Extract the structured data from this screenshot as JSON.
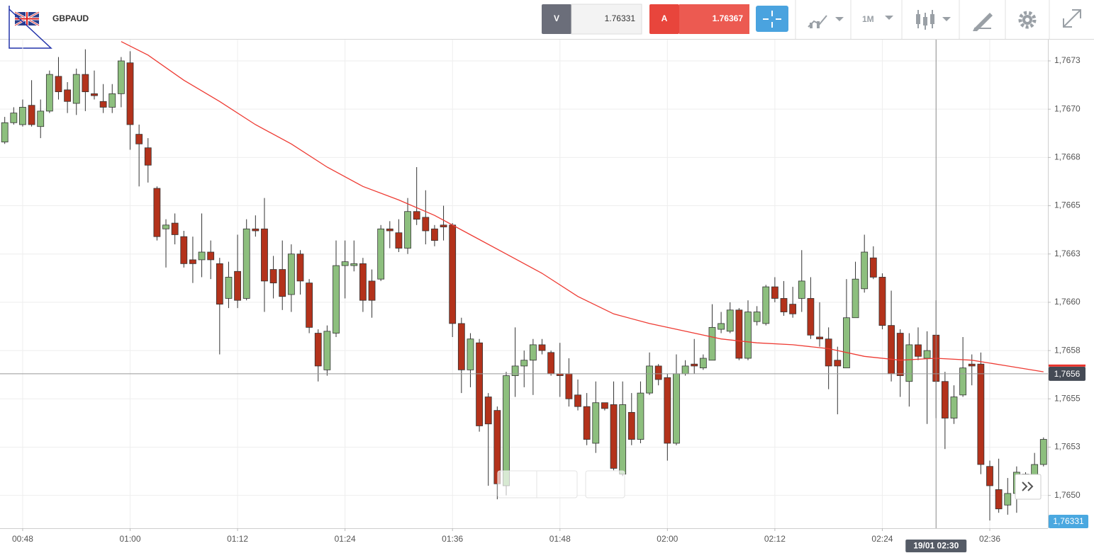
{
  "toolbar": {
    "symbol": "GBPAUD",
    "sell_label": "V",
    "sell_price": "1.76331",
    "buy_label": "A",
    "buy_price": "1.76367",
    "timeframe": "1M"
  },
  "chart_data": {
    "type": "candlestick",
    "up_color": "#8dbf7e",
    "down_color": "#b3321b",
    "x": [
      "00:46",
      "00:47",
      "00:48",
      "00:49",
      "00:50",
      "00:51",
      "00:52",
      "00:53",
      "00:54",
      "00:55",
      "00:56",
      "00:57",
      "00:58",
      "00:59",
      "01:00",
      "01:01",
      "01:02",
      "01:03",
      "01:04",
      "01:05",
      "01:06",
      "01:07",
      "01:08",
      "01:09",
      "01:10",
      "01:11",
      "01:12",
      "01:13",
      "01:14",
      "01:15",
      "01:16",
      "01:17",
      "01:18",
      "01:19",
      "01:20",
      "01:21",
      "01:22",
      "01:23",
      "01:24",
      "01:25",
      "01:26",
      "01:27",
      "01:28",
      "01:29",
      "01:30",
      "01:31",
      "01:32",
      "01:33",
      "01:34",
      "01:35",
      "01:36",
      "01:37",
      "01:38",
      "01:39",
      "01:40",
      "01:41",
      "01:42",
      "01:43",
      "01:44",
      "01:45",
      "01:46",
      "01:47",
      "01:48",
      "01:49",
      "01:50",
      "01:51",
      "01:52",
      "01:53",
      "01:54",
      "01:55",
      "01:56",
      "01:57",
      "01:58",
      "01:59",
      "02:00",
      "02:01",
      "02:02",
      "02:03",
      "02:04",
      "02:05",
      "02:06",
      "02:07",
      "02:08",
      "02:09",
      "02:10",
      "02:11",
      "02:12",
      "02:13",
      "02:14",
      "02:15",
      "02:16",
      "02:17",
      "02:18",
      "02:19",
      "02:20",
      "02:21",
      "02:22",
      "02:23",
      "02:24",
      "02:25",
      "02:26",
      "02:27",
      "02:28",
      "02:29",
      "02:30",
      "02:31",
      "02:32",
      "02:33",
      "02:34",
      "02:35",
      "02:36",
      "02:37",
      "02:38",
      "02:39",
      "02:40",
      "02:41",
      "02:42"
    ],
    "open": [
      1.76683,
      1.76693,
      1.76692,
      1.76702,
      1.76691,
      1.76699,
      1.76717,
      1.7671,
      1.76703,
      1.76718,
      1.76708,
      1.76704,
      1.76701,
      1.76708,
      1.76724,
      1.76687,
      1.7668,
      1.76659,
      1.76638,
      1.76641,
      1.76634,
      1.76622,
      1.76622,
      1.76626,
      1.7662,
      1.76602,
      1.76616,
      1.76602,
      1.76638,
      1.76638,
      1.76617,
      1.76617,
      1.76604,
      1.76625,
      1.7661,
      1.76584,
      1.76565,
      1.76584,
      1.76619,
      1.76619,
      1.7662,
      1.76611,
      1.76612,
      1.76638,
      1.76636,
      1.76628,
      1.76647,
      1.76644,
      1.76638,
      1.7664,
      1.7664,
      1.76589,
      1.76565,
      1.76579,
      1.76551,
      1.76544,
      1.76505,
      1.76562,
      1.76567,
      1.7657,
      1.76578,
      1.76574,
      1.76563,
      1.76563,
      1.76552,
      1.76546,
      1.76527,
      1.76548,
      1.76547,
      1.76511,
      1.76543,
      1.76529,
      1.76553,
      1.76567,
      1.76561,
      1.76527,
      1.76563,
      1.76568,
      1.76566,
      1.7657,
      1.76586,
      1.76585,
      1.76596,
      1.76571,
      1.7659,
      1.76589,
      1.76608,
      1.76602,
      1.76599,
      1.76602,
      1.76602,
      1.76582,
      1.76581,
      1.7657,
      1.76566,
      1.76592,
      1.76607,
      1.76623,
      1.76613,
      1.76588,
      1.76584,
      1.76559,
      1.76578,
      1.76571,
      1.76583,
      1.76559,
      1.7654,
      1.76552,
      1.76568,
      1.76568,
      1.76515,
      1.76503,
      1.76495,
      1.76501,
      1.76511,
      1.7651,
      1.76516
    ],
    "high": [
      1.76696,
      1.76701,
      1.76705,
      1.76715,
      1.76705,
      1.7672,
      1.76727,
      1.76714,
      1.76721,
      1.76731,
      1.7672,
      1.76713,
      1.76713,
      1.76727,
      1.7673,
      1.76692,
      1.76685,
      1.7666,
      1.76643,
      1.76646,
      1.76637,
      1.76634,
      1.76646,
      1.76632,
      1.76623,
      1.76621,
      1.76635,
      1.76643,
      1.76645,
      1.76654,
      1.76624,
      1.76632,
      1.7663,
      1.76627,
      1.76612,
      1.76586,
      1.76588,
      1.76632,
      1.76632,
      1.76632,
      1.76623,
      1.76617,
      1.7664,
      1.76642,
      1.76643,
      1.76654,
      1.7667,
      1.76658,
      1.7664,
      1.7665,
      1.76641,
      1.76592,
      1.76584,
      1.76581,
      1.76553,
      1.76546,
      1.76564,
      1.76587,
      1.76575,
      1.76581,
      1.76581,
      1.76575,
      1.76579,
      1.76571,
      1.7656,
      1.76553,
      1.76559,
      1.76548,
      1.76559,
      1.76559,
      1.76553,
      1.76559,
      1.76574,
      1.76568,
      1.76563,
      1.76573,
      1.7657,
      1.76581,
      1.76573,
      1.76599,
      1.76595,
      1.766,
      1.76597,
      1.76601,
      1.76598,
      1.76609,
      1.76613,
      1.76611,
      1.76608,
      1.76627,
      1.76613,
      1.766,
      1.76587,
      1.76577,
      1.76612,
      1.76621,
      1.76635,
      1.76629,
      1.76615,
      1.76606,
      1.76586,
      1.76584,
      1.76587,
      1.76585,
      1.76601,
      1.76564,
      1.76557,
      1.76582,
      1.76573,
      1.76574,
      1.76518,
      1.76519,
      1.76509,
      1.76515,
      1.76512,
      1.76522,
      1.7653
    ],
    "low": [
      1.76682,
      1.76692,
      1.76691,
      1.76691,
      1.76685,
      1.76698,
      1.76705,
      1.76698,
      1.76697,
      1.76699,
      1.76705,
      1.76698,
      1.76698,
      1.76701,
      1.76679,
      1.7666,
      1.76662,
      1.76632,
      1.76618,
      1.7663,
      1.76618,
      1.7661,
      1.76613,
      1.76612,
      1.76573,
      1.76597,
      1.76597,
      1.76601,
      1.76634,
      1.76595,
      1.76602,
      1.76596,
      1.76595,
      1.76604,
      1.76584,
      1.76559,
      1.76562,
      1.76582,
      1.76602,
      1.76616,
      1.76595,
      1.76592,
      1.76611,
      1.76628,
      1.76626,
      1.76625,
      1.7664,
      1.7663,
      1.76629,
      1.76632,
      1.76582,
      1.76553,
      1.76556,
      1.76533,
      1.76505,
      1.76498,
      1.765,
      1.76551,
      1.76556,
      1.76552,
      1.76573,
      1.76562,
      1.76551,
      1.76546,
      1.76544,
      1.76526,
      1.76522,
      1.76544,
      1.76513,
      1.7651,
      1.76526,
      1.76527,
      1.76552,
      1.76557,
      1.76518,
      1.76526,
      1.76562,
      1.76563,
      1.76565,
      1.7657,
      1.76584,
      1.76584,
      1.7657,
      1.7657,
      1.76588,
      1.76588,
      1.766,
      1.76593,
      1.76592,
      1.76595,
      1.76581,
      1.76577,
      1.76555,
      1.76542,
      1.76566,
      1.76592,
      1.76605,
      1.76612,
      1.76586,
      1.76559,
      1.76551,
      1.76546,
      1.7657,
      1.76537,
      1.7654,
      1.76524,
      1.76537,
      1.76551,
      1.76557,
      1.76511,
      1.76487,
      1.76491,
      1.7649,
      1.76491,
      1.765,
      1.76509,
      1.76515
    ],
    "close": [
      1.76693,
      1.76698,
      1.76701,
      1.76692,
      1.76699,
      1.76718,
      1.76709,
      1.76704,
      1.76718,
      1.76709,
      1.76707,
      1.76701,
      1.76708,
      1.76725,
      1.76692,
      1.76682,
      1.76671,
      1.76634,
      1.7664,
      1.76635,
      1.7662,
      1.7662,
      1.76626,
      1.76622,
      1.76599,
      1.76613,
      1.76601,
      1.76638,
      1.76637,
      1.76611,
      1.7661,
      1.76603,
      1.76625,
      1.76611,
      1.76587,
      1.76567,
      1.76585,
      1.76619,
      1.76621,
      1.7662,
      1.76601,
      1.76601,
      1.76638,
      1.76637,
      1.76628,
      1.76647,
      1.76643,
      1.76637,
      1.76632,
      1.76639,
      1.76589,
      1.76565,
      1.76581,
      1.76536,
      1.76537,
      1.76506,
      1.76562,
      1.76567,
      1.7657,
      1.76578,
      1.76575,
      1.76563,
      1.76562,
      1.7655,
      1.76546,
      1.76529,
      1.76548,
      1.76545,
      1.76514,
      1.76547,
      1.76529,
      1.76553,
      1.76567,
      1.7656,
      1.76527,
      1.76563,
      1.76567,
      1.76567,
      1.76571,
      1.76587,
      1.76589,
      1.76596,
      1.76571,
      1.76595,
      1.76595,
      1.76608,
      1.76602,
      1.76595,
      1.76594,
      1.76611,
      1.76583,
      1.76581,
      1.76567,
      1.76567,
      1.76592,
      1.76612,
      1.76626,
      1.76613,
      1.76588,
      1.76563,
      1.76562,
      1.76578,
      1.76572,
      1.76575,
      1.76559,
      1.7654,
      1.76551,
      1.76566,
      1.76567,
      1.76516,
      1.76505,
      1.76493,
      1.76501,
      1.76512,
      1.7651,
      1.76516,
      1.76529
    ],
    "ma": {
      "color": "#ee3b33",
      "x": [
        "00:59",
        "01:02",
        "01:06",
        "01:10",
        "01:14",
        "01:18",
        "01:22",
        "01:26",
        "01:30",
        "01:34",
        "01:38",
        "01:42",
        "01:46",
        "01:50",
        "01:54",
        "01:58",
        "02:02",
        "02:06",
        "02:10",
        "02:14",
        "02:18",
        "02:22",
        "02:26",
        "02:30",
        "02:34",
        "02:38",
        "02:42"
      ],
      "values": [
        1.76735,
        1.76728,
        1.76715,
        1.76704,
        1.76692,
        1.76682,
        1.7667,
        1.7666,
        1.76653,
        1.76645,
        1.76635,
        1.76625,
        1.76615,
        1.76603,
        1.76594,
        1.76589,
        1.76585,
        1.76581,
        1.76579,
        1.76578,
        1.76576,
        1.76572,
        1.7657,
        1.76571,
        1.7657,
        1.76567,
        1.76564
      ]
    },
    "ylim": [
      1.76483,
      1.76736
    ],
    "yticks": [
      {
        "value": 1.765,
        "label": "1,7650"
      },
      {
        "value": 1.76525,
        "label": "1,7653"
      },
      {
        "value": 1.7655,
        "label": "1,7655"
      },
      {
        "value": 1.76575,
        "label": "1,7658"
      },
      {
        "value": 1.766,
        "label": "1,7660"
      },
      {
        "value": 1.76625,
        "label": "1,7663"
      },
      {
        "value": 1.7665,
        "label": "1,7665"
      },
      {
        "value": 1.76675,
        "label": "1,7668"
      },
      {
        "value": 1.767,
        "label": "1,7670"
      },
      {
        "value": 1.76725,
        "label": "1,7673"
      }
    ],
    "xticks": [
      "00:48",
      "01:00",
      "01:12",
      "01:24",
      "01:36",
      "01:48",
      "02:00",
      "02:12",
      "02:24",
      "02:36"
    ],
    "grid": true,
    "last_price": {
      "value": 1.76563,
      "label": "1,7656"
    },
    "crosshair": {
      "x": "02:30",
      "label": "19/01 02:30"
    },
    "bid_marker": "1,76331"
  }
}
